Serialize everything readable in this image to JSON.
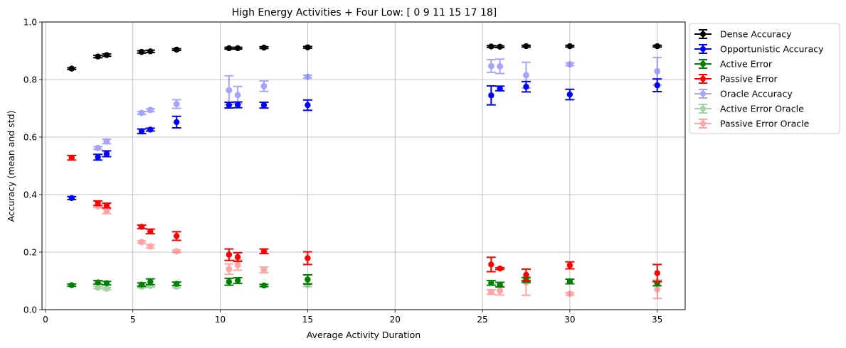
{
  "chart_data": {
    "type": "scatter",
    "title": "High Energy Activities + Four Low: [ 0  9 11 15 17 18]",
    "xlabel": "Average Activity Duration",
    "ylabel": "Accuracy (mean and std)",
    "xlim": [
      -0.2,
      36.6
    ],
    "ylim": [
      0,
      1.0
    ],
    "xticks": [
      0,
      5,
      10,
      15,
      20,
      25,
      30,
      35
    ],
    "yticks": [
      0.0,
      0.2,
      0.4,
      0.6,
      0.8,
      1.0
    ],
    "xtick_labels": [
      "0",
      "5",
      "10",
      "15",
      "20",
      "25",
      "30",
      "35"
    ],
    "ytick_labels": [
      "0.0",
      "0.2",
      "0.4",
      "0.6",
      "0.8",
      "1.0"
    ],
    "grid": true,
    "legend_position": "outside-top-right",
    "series": [
      {
        "name": "Dense Accuracy",
        "color": "#000000",
        "alpha": 1.0,
        "x": [
          1.5,
          3.0,
          3.5,
          5.5,
          6.0,
          7.5,
          10.5,
          11.0,
          12.5,
          15.0,
          25.5,
          26.0,
          27.5,
          30.0,
          35.0
        ],
        "y": [
          0.838,
          0.88,
          0.885,
          0.896,
          0.898,
          0.904,
          0.909,
          0.909,
          0.911,
          0.912,
          0.915,
          0.914,
          0.916,
          0.916,
          0.916
        ],
        "err": [
          0.003,
          0.004,
          0.004,
          0.004,
          0.004,
          0.003,
          0.003,
          0.003,
          0.003,
          0.003,
          0.003,
          0.003,
          0.003,
          0.003,
          0.003
        ]
      },
      {
        "name": "Opportunistic Accuracy",
        "color": "#0000ff",
        "alpha": 1.0,
        "x": [
          1.5,
          3.0,
          3.5,
          5.5,
          6.0,
          7.5,
          10.5,
          11.0,
          12.5,
          15.0,
          25.5,
          26.0,
          27.5,
          30.0,
          35.0
        ],
        "y": [
          0.388,
          0.53,
          0.542,
          0.62,
          0.626,
          0.652,
          0.711,
          0.712,
          0.711,
          0.711,
          0.745,
          0.769,
          0.775,
          0.748,
          0.78
        ],
        "err": [
          0.005,
          0.01,
          0.01,
          0.008,
          0.005,
          0.02,
          0.01,
          0.01,
          0.01,
          0.018,
          0.033,
          0.008,
          0.018,
          0.018,
          0.022
        ]
      },
      {
        "name": "Active Error",
        "color": "#008000",
        "alpha": 1.0,
        "x": [
          1.5,
          3.0,
          3.5,
          5.5,
          6.0,
          7.5,
          10.5,
          11.0,
          12.5,
          15.0,
          25.5,
          26.0,
          27.5,
          30.0,
          35.0
        ],
        "y": [
          0.085,
          0.095,
          0.092,
          0.087,
          0.097,
          0.09,
          0.097,
          0.101,
          0.084,
          0.105,
          0.093,
          0.087,
          0.104,
          0.098,
          0.091
        ],
        "err": [
          0.004,
          0.006,
          0.006,
          0.006,
          0.01,
          0.006,
          0.012,
          0.01,
          0.004,
          0.016,
          0.008,
          0.008,
          0.008,
          0.008,
          0.008
        ]
      },
      {
        "name": "Passive Error",
        "color": "#ff0000",
        "alpha": 1.0,
        "x": [
          1.5,
          3.0,
          3.5,
          5.5,
          6.0,
          7.5,
          10.5,
          11.0,
          12.5,
          15.0,
          25.5,
          26.0,
          27.5,
          30.0,
          35.0
        ],
        "y": [
          0.528,
          0.37,
          0.362,
          0.288,
          0.272,
          0.256,
          0.191,
          0.183,
          0.203,
          0.179,
          0.157,
          0.143,
          0.121,
          0.154,
          0.127
        ],
        "err": [
          0.008,
          0.008,
          0.008,
          0.006,
          0.008,
          0.015,
          0.02,
          0.015,
          0.008,
          0.022,
          0.025,
          0.003,
          0.02,
          0.012,
          0.03
        ]
      },
      {
        "name": "Oracle Accuracy",
        "color": "#0000ff",
        "alpha": 0.35,
        "x": [
          3.0,
          3.5,
          5.5,
          6.0,
          7.5,
          10.5,
          11.0,
          12.5,
          15.0,
          25.5,
          26.0,
          27.5,
          30.0,
          35.0
        ],
        "y": [
          0.562,
          0.585,
          0.684,
          0.694,
          0.715,
          0.763,
          0.746,
          0.777,
          0.81,
          0.847,
          0.846,
          0.815,
          0.853,
          0.829
        ],
        "err": [
          0.005,
          0.008,
          0.005,
          0.005,
          0.015,
          0.05,
          0.03,
          0.018,
          0.005,
          0.022,
          0.025,
          0.045,
          0.005,
          0.048
        ]
      },
      {
        "name": "Active Error Oracle",
        "color": "#008000",
        "alpha": 0.35,
        "x": [
          3.0,
          3.5,
          5.5,
          6.0,
          7.5,
          15.0,
          27.5
        ],
        "y": [
          0.077,
          0.073,
          0.08,
          0.083,
          0.08,
          0.086,
          0.1
        ],
        "err": [
          0.004,
          0.004,
          0.004,
          0.004,
          0.004,
          0.006,
          0.008
        ]
      },
      {
        "name": "Passive Error Oracle",
        "color": "#ff0000",
        "alpha": 0.35,
        "x": [
          3.0,
          3.5,
          5.5,
          6.0,
          7.5,
          10.5,
          11.0,
          12.5,
          25.5,
          26.0,
          27.5,
          30.0,
          35.0
        ],
        "y": [
          0.359,
          0.342,
          0.235,
          0.22,
          0.203,
          0.141,
          0.155,
          0.138,
          0.061,
          0.066,
          0.095,
          0.055,
          0.071
        ],
        "err": [
          0.004,
          0.008,
          0.004,
          0.006,
          0.004,
          0.018,
          0.018,
          0.01,
          0.008,
          0.015,
          0.045,
          0.004,
          0.032
        ]
      }
    ]
  }
}
